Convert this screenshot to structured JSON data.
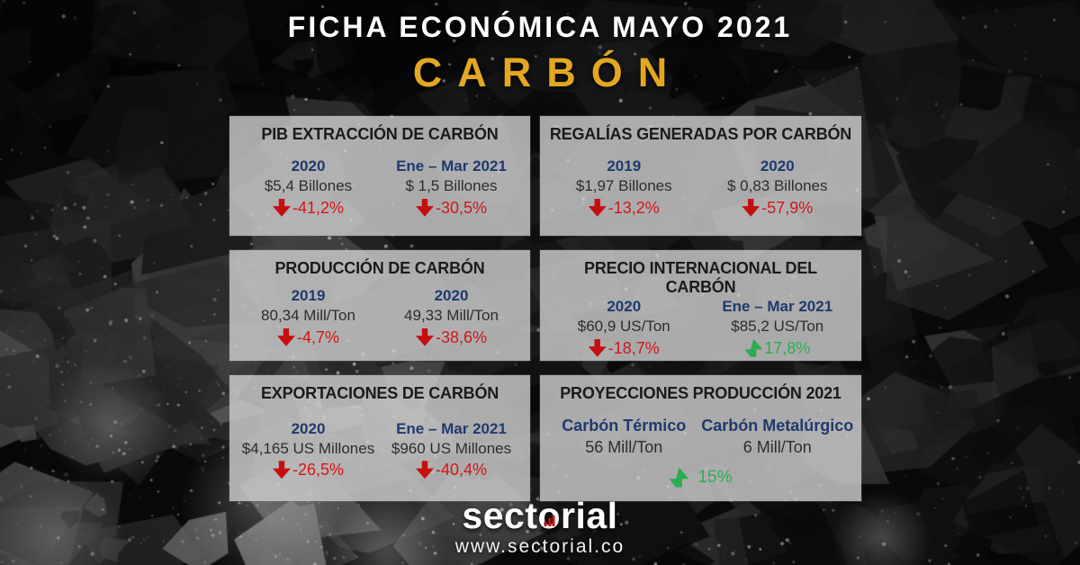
{
  "header": {
    "title": "FICHA ECONÓMICA MAYO 2021",
    "subtitle": "CARBÓN",
    "subtitle_color": "#E3A722"
  },
  "cards": [
    {
      "title": "PIB EXTRACCIÓN DE CARBÓN",
      "cols": [
        {
          "label": "2020",
          "value": "$5,4 Billones",
          "change": {
            "dir": "down",
            "text": "-41,2%"
          }
        },
        {
          "label": "Ene – Mar 2021",
          "value": "$ 1,5 Billones",
          "change": {
            "dir": "down",
            "text": "-30,5%"
          }
        }
      ]
    },
    {
      "title": "REGALÍAS GENERADAS POR CARBÓN",
      "cols": [
        {
          "label": "2019",
          "value": "$1,97 Billones",
          "change": {
            "dir": "down",
            "text": "-13,2%"
          }
        },
        {
          "label": "2020",
          "value": "$ 0,83 Billones",
          "change": {
            "dir": "down",
            "text": "-57,9%"
          }
        }
      ]
    },
    {
      "title": "PRODUCCIÓN DE CARBÓN",
      "cols": [
        {
          "label": "2019",
          "value": "80,34 Mill/Ton",
          "change": {
            "dir": "down",
            "text": "-4,7%"
          }
        },
        {
          "label": "2020",
          "value": "49,33 Mill/Ton",
          "change": {
            "dir": "down",
            "text": "-38,6%"
          }
        }
      ]
    },
    {
      "title": "PRECIO INTERNACIONAL DEL CARBÓN",
      "cols": [
        {
          "label": "2020",
          "value": "$60,9 US/Ton",
          "change": {
            "dir": "down",
            "text": "-18,7%"
          }
        },
        {
          "label": "Ene – Mar 2021",
          "value": "$85,2 US/Ton",
          "change": {
            "dir": "up",
            "text": "17,8%"
          }
        }
      ]
    },
    {
      "title": "EXPORTACIONES DE CARBÓN",
      "cols": [
        {
          "label": "2020",
          "value": "$4,165 US Millones",
          "change": {
            "dir": "down",
            "text": "-26,5%"
          }
        },
        {
          "label": "Ene – Mar 2021",
          "value": "$960 US Millones",
          "change": {
            "dir": "down",
            "text": "-40,4%"
          }
        }
      ]
    },
    {
      "title": "PROYECCIONES PRODUCCIÓN 2021",
      "cols": [
        {
          "label": "Carbón Térmico",
          "value": "56 Mill/Ton"
        },
        {
          "label": "Carbón Metalúrgico",
          "value": "6 Mill/Ton"
        }
      ],
      "footer_change": {
        "dir": "up",
        "text": "15%"
      }
    }
  ],
  "footer": {
    "logo_prefix": "sect",
    "logo_o": "o",
    "logo_suffix": "rial",
    "url": "www.sectorial.co"
  },
  "colors": {
    "accent_gold": "#E3A722",
    "label_blue": "#1F3A6E",
    "negative_red": "#D31717",
    "positive_green": "#2BAC4F",
    "card_bg": "rgba(205,205,205,0.82)"
  }
}
